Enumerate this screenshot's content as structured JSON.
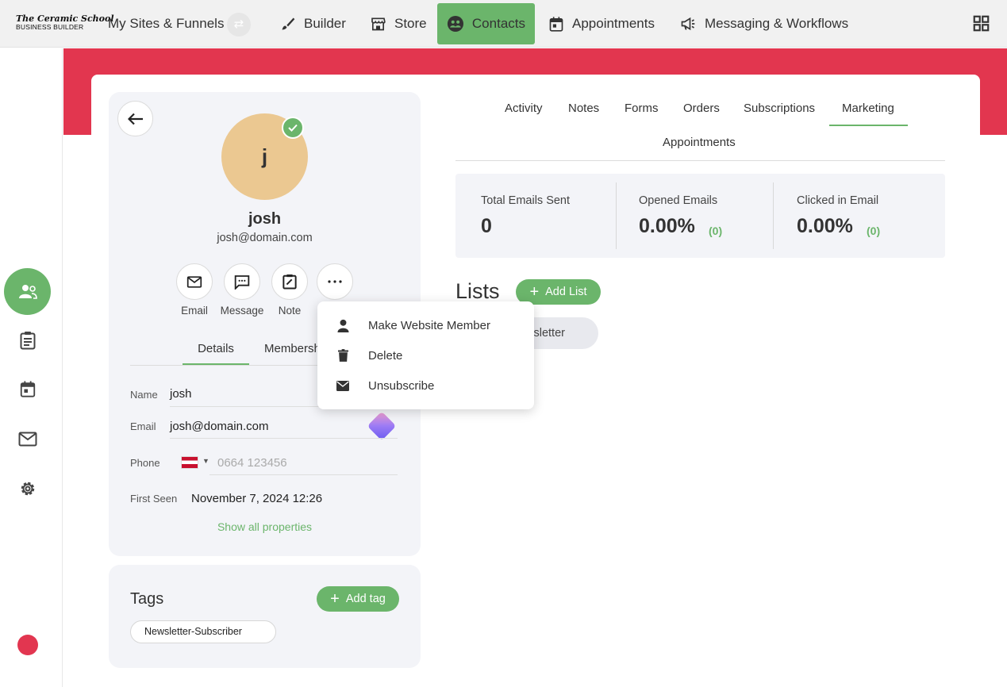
{
  "brand": {
    "logo_line1": "The Ceramic School",
    "logo_line2": "BUSINESS BUILDER"
  },
  "topnav": {
    "sites_label": "My Sites & Funnels",
    "items": [
      {
        "label": "Builder",
        "icon": "brush-icon"
      },
      {
        "label": "Store",
        "icon": "store-icon"
      },
      {
        "label": "Contacts",
        "icon": "contacts-icon",
        "active": true
      },
      {
        "label": "Appointments",
        "icon": "calendar-icon"
      },
      {
        "label": "Messaging & Workflows",
        "icon": "megaphone-icon"
      }
    ]
  },
  "rail": [
    "contacts-icon",
    "clipboard-icon",
    "calendar-icon",
    "mail-icon",
    "gear-icon"
  ],
  "profile": {
    "initial": "j",
    "name": "josh",
    "email": "josh@domain.com",
    "actions": [
      {
        "label": "Email",
        "icon": "mail-icon"
      },
      {
        "label": "Message",
        "icon": "chat-icon"
      },
      {
        "label": "Note",
        "icon": "note-icon"
      },
      {
        "label": "",
        "icon": "more-icon"
      }
    ],
    "tabs": [
      "Details",
      "Membershi"
    ],
    "fields": {
      "name_label": "Name",
      "name_value": "josh",
      "email_label": "Email",
      "email_value": "josh@domain.com",
      "phone_label": "Phone",
      "phone_placeholder": "0664 123456",
      "first_seen_label": "First Seen",
      "first_seen_value": "November 7, 2024 12:26"
    },
    "show_all": "Show all properties"
  },
  "tags": {
    "title": "Tags",
    "add_label": "Add tag",
    "items": [
      "Newsletter-Subscriber"
    ]
  },
  "tabs": [
    "Activity",
    "Notes",
    "Forms",
    "Orders",
    "Subscriptions",
    "Marketing",
    "Appointments"
  ],
  "active_tab": "Marketing",
  "stats": [
    {
      "label": "Total Emails Sent",
      "value": "0",
      "sub": ""
    },
    {
      "label": "Opened Emails",
      "value": "0.00%",
      "sub": "(0)"
    },
    {
      "label": "Clicked in Email",
      "value": "0.00%",
      "sub": "(0)"
    }
  ],
  "lists": {
    "title": "Lists",
    "add_label": "Add List",
    "items": [
      "wsletter"
    ]
  },
  "dropdown": [
    {
      "label": "Make Website Member",
      "icon": "person-icon"
    },
    {
      "label": "Delete",
      "icon": "trash-icon"
    },
    {
      "label": "Unsubscribe",
      "icon": "envelope-icon"
    }
  ],
  "colors": {
    "accent": "#6bb56b",
    "banner": "#e2364f",
    "avatar": "#ebc891"
  }
}
